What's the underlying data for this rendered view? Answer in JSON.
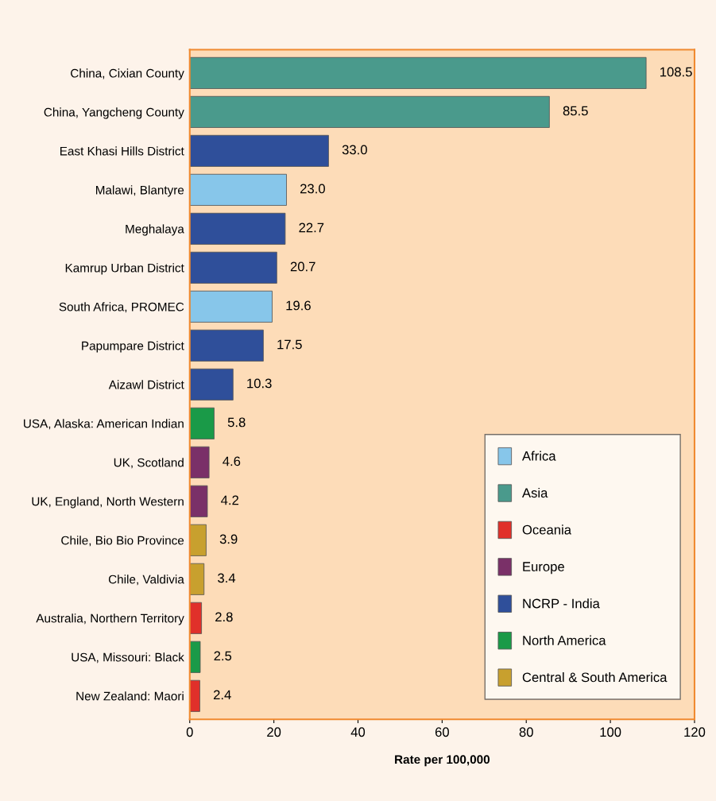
{
  "chart_data": {
    "type": "bar",
    "orientation": "horizontal",
    "xlabel": "Rate per 100,000",
    "categories": [
      "China, Cixian County",
      "China, Yangcheng County",
      "East Khasi Hills District",
      "Malawi, Blantyre",
      "Meghalaya",
      "Kamrup Urban District",
      "South Africa, PROMEC",
      "Papumpare District",
      "Aizawl District",
      "USA, Alaska: American Indian",
      "UK, Scotland",
      "UK, England, North Western",
      "Chile, Bio Bio Province",
      "Chile, Valdivia",
      "Australia, Northern Territory",
      "USA, Missouri: Black",
      "New Zealand: Maori"
    ],
    "series": [
      {
        "name": "Africa",
        "color": "#87c6ea",
        "values": [
          null,
          null,
          null,
          23.0,
          null,
          null,
          19.6,
          null,
          null,
          null,
          null,
          null,
          null,
          null,
          null,
          null,
          null
        ]
      },
      {
        "name": "Asia",
        "color": "#4a9a8c",
        "values": [
          108.5,
          85.5,
          null,
          null,
          null,
          null,
          null,
          null,
          null,
          null,
          null,
          null,
          null,
          null,
          null,
          null,
          null
        ]
      },
      {
        "name": "Oceania",
        "color": "#e0302a",
        "values": [
          null,
          null,
          null,
          null,
          null,
          null,
          null,
          null,
          null,
          null,
          null,
          null,
          null,
          null,
          2.8,
          null,
          2.4
        ]
      },
      {
        "name": "Europe",
        "color": "#7a3068",
        "values": [
          null,
          null,
          null,
          null,
          null,
          null,
          null,
          null,
          null,
          null,
          4.6,
          4.2,
          null,
          null,
          null,
          null,
          null
        ]
      },
      {
        "name": "NCRP - India",
        "color": "#2f4f9a",
        "values": [
          null,
          null,
          33.0,
          null,
          22.7,
          20.7,
          null,
          17.5,
          10.3,
          null,
          null,
          null,
          null,
          null,
          null,
          null,
          null
        ]
      },
      {
        "name": "North America",
        "color": "#1a9a48",
        "values": [
          null,
          null,
          null,
          null,
          null,
          null,
          null,
          null,
          null,
          5.8,
          null,
          null,
          null,
          null,
          null,
          2.5,
          null
        ]
      },
      {
        "name": "Central & South America",
        "color": "#c8a02e",
        "values": [
          null,
          null,
          null,
          null,
          null,
          null,
          null,
          null,
          null,
          null,
          null,
          null,
          3.9,
          3.4,
          null,
          null,
          null
        ]
      }
    ],
    "value_labels": [
      "108.5",
      "85.5",
      "33.0",
      "23.0",
      "22.7",
      "20.7",
      "19.6",
      "17.5",
      "10.3",
      "5.8",
      "4.6",
      "4.2",
      "3.9",
      "3.4",
      "2.8",
      "2.5",
      "2.4"
    ],
    "xlim": [
      0,
      120
    ],
    "xticks": [
      0,
      20,
      40,
      60,
      80,
      100,
      120
    ],
    "grid": false,
    "legend": "bottom right"
  }
}
